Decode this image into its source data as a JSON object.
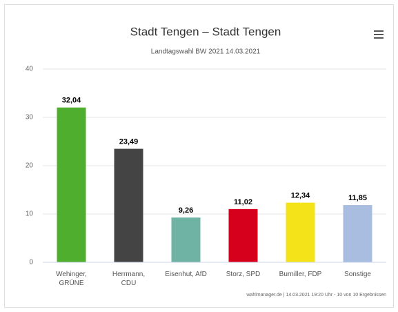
{
  "chart_data": {
    "type": "bar",
    "title": "Stadt Tengen – Stadt Tengen",
    "subtitle": "Landtagswahl BW 2021 14.03.2021",
    "categories": [
      "Wehinger,\nGRÜNE",
      "Herrmann,\nCDU",
      "Eisenhut, AfD",
      "Storz, SPD",
      "Burniller, FDP",
      "Sonstige"
    ],
    "values": [
      32.04,
      23.49,
      9.26,
      11.02,
      12.34,
      11.85
    ],
    "value_labels": [
      "32,04",
      "23,49",
      "9,26",
      "11,02",
      "12,34",
      "11,85"
    ],
    "colors": [
      "#4fae2e",
      "#444444",
      "#6fb3a5",
      "#d6001c",
      "#f5e31a",
      "#a8bde0"
    ],
    "ylim": [
      0,
      40
    ],
    "yticks": [
      0,
      10,
      20,
      30,
      40
    ],
    "grid": true,
    "credits": "wahlmanager.de | 14.03.2021 19:20 Uhr - 10 von 10 Ergebnissen"
  }
}
